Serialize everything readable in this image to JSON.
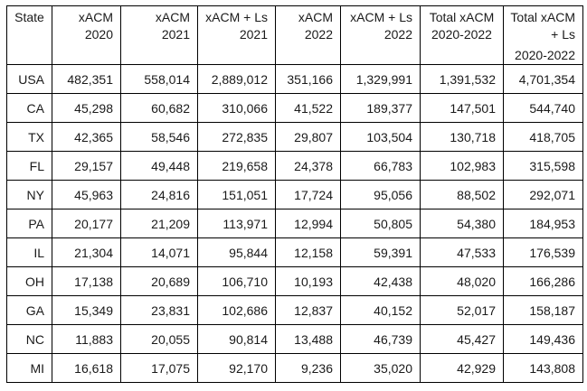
{
  "colors": {
    "background": "#ffffff",
    "border": "#000000",
    "text": "#1a1a1a"
  },
  "table": {
    "columns": [
      {
        "id": "state",
        "line1": "State"
      },
      {
        "id": "xacm_2020",
        "line1": "xACM",
        "line2": "2020"
      },
      {
        "id": "xacm_2021",
        "line1": "xACM",
        "line2": "2021"
      },
      {
        "id": "xacm_ls_2021",
        "line1": "xACM + Ls",
        "line2": "2021"
      },
      {
        "id": "xacm_2022",
        "line1": "xACM",
        "line2": "2022"
      },
      {
        "id": "xacm_ls_2022",
        "line1": "xACM + Ls",
        "line2": "2022"
      },
      {
        "id": "total_xacm",
        "line1": "Total xACM",
        "line2": "2020-2022"
      },
      {
        "id": "total_xacm_ls",
        "line1": "Total xACM",
        "line2": "+ Ls",
        "line3": "2020-2022"
      }
    ],
    "rows": [
      {
        "state": "USA",
        "values": [
          "482,351",
          "558,014",
          "2,889,012",
          "351,166",
          "1,329,991",
          "1,391,532",
          "4,701,354"
        ]
      },
      {
        "state": "CA",
        "values": [
          "45,298",
          "60,682",
          "310,066",
          "41,522",
          "189,377",
          "147,501",
          "544,740"
        ]
      },
      {
        "state": "TX",
        "values": [
          "42,365",
          "58,546",
          "272,835",
          "29,807",
          "103,504",
          "130,718",
          "418,705"
        ]
      },
      {
        "state": "FL",
        "values": [
          "29,157",
          "49,448",
          "219,658",
          "24,378",
          "66,783",
          "102,983",
          "315,598"
        ]
      },
      {
        "state": "NY",
        "values": [
          "45,963",
          "24,816",
          "151,051",
          "17,724",
          "95,056",
          "88,502",
          "292,071"
        ]
      },
      {
        "state": "PA",
        "values": [
          "20,177",
          "21,209",
          "113,971",
          "12,994",
          "50,805",
          "54,380",
          "184,953"
        ]
      },
      {
        "state": "IL",
        "values": [
          "21,304",
          "14,071",
          "95,844",
          "12,158",
          "59,391",
          "47,533",
          "176,539"
        ]
      },
      {
        "state": "OH",
        "values": [
          "17,138",
          "20,689",
          "106,710",
          "10,193",
          "42,438",
          "48,020",
          "166,286"
        ]
      },
      {
        "state": "GA",
        "values": [
          "15,349",
          "23,831",
          "102,686",
          "12,837",
          "40,152",
          "52,017",
          "158,187"
        ]
      },
      {
        "state": "NC",
        "values": [
          "11,883",
          "20,055",
          "90,814",
          "13,488",
          "46,739",
          "45,427",
          "149,436"
        ]
      },
      {
        "state": "MI",
        "values": [
          "16,618",
          "17,075",
          "92,170",
          "9,236",
          "35,020",
          "42,929",
          "143,808"
        ]
      }
    ]
  },
  "chart_data": {
    "type": "table",
    "title": "",
    "columns": [
      "State",
      "xACM 2020",
      "xACM 2021",
      "xACM + Ls 2021",
      "xACM 2022",
      "xACM + Ls 2022",
      "Total xACM 2020-2022",
      "Total xACM + Ls 2020-2022"
    ],
    "rows": [
      [
        "USA",
        482351,
        558014,
        2889012,
        351166,
        1329991,
        1391532,
        4701354
      ],
      [
        "CA",
        45298,
        60682,
        310066,
        41522,
        189377,
        147501,
        544740
      ],
      [
        "TX",
        42365,
        58546,
        272835,
        29807,
        103504,
        130718,
        418705
      ],
      [
        "FL",
        29157,
        49448,
        219658,
        24378,
        66783,
        102983,
        315598
      ],
      [
        "NY",
        45963,
        24816,
        151051,
        17724,
        95056,
        88502,
        292071
      ],
      [
        "PA",
        20177,
        21209,
        113971,
        12994,
        50805,
        54380,
        184953
      ],
      [
        "IL",
        21304,
        14071,
        95844,
        12158,
        59391,
        47533,
        176539
      ],
      [
        "OH",
        17138,
        20689,
        106710,
        10193,
        42438,
        48020,
        166286
      ],
      [
        "GA",
        15349,
        23831,
        102686,
        12837,
        40152,
        52017,
        158187
      ],
      [
        "NC",
        11883,
        20055,
        90814,
        13488,
        46739,
        45427,
        149436
      ],
      [
        "MI",
        16618,
        17075,
        92170,
        9236,
        35020,
        42929,
        143808
      ]
    ],
    "layout": {
      "grid": true,
      "header_rows": 1,
      "number_alignment": "right"
    }
  }
}
